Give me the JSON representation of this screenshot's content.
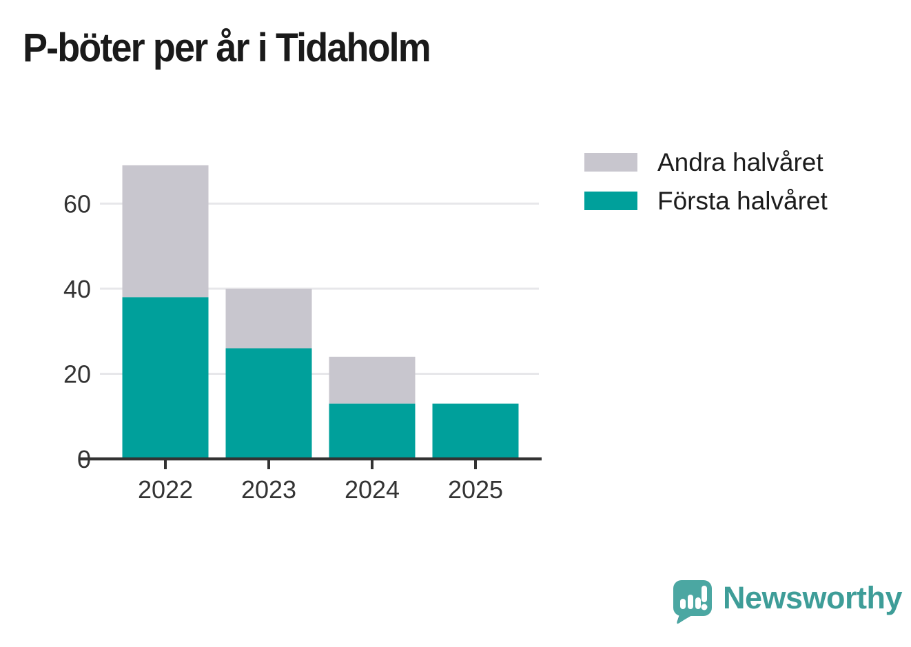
{
  "title": "P-böter per år i Tidaholm",
  "colors": {
    "first_half": "#00A09B",
    "second_half": "#C8C6CE",
    "axis": "#333333",
    "gridline": "#E7E7EA",
    "title_text": "#1A1A1A",
    "tick_text": "#333333",
    "brand_teal": "#3E9D98",
    "logo_bubble": "#4BA7A2",
    "logo_tail_shadow": "#3A7C8C"
  },
  "legend": {
    "items": [
      {
        "label": "Andra halvåret",
        "color": "#C8C6CE"
      },
      {
        "label": "Första halvåret",
        "color": "#00A09B"
      }
    ]
  },
  "chart_data": {
    "type": "bar",
    "stacked": true,
    "title": "P-böter per år i Tidaholm",
    "xlabel": "",
    "ylabel": "",
    "categories": [
      "2022",
      "2023",
      "2024",
      "2025"
    ],
    "series": [
      {
        "name": "Första halvåret",
        "color": "#00A09B",
        "values": [
          38,
          26,
          13,
          13
        ]
      },
      {
        "name": "Andra halvåret",
        "color": "#C8C6CE",
        "values": [
          31,
          14,
          11,
          0
        ]
      }
    ],
    "totals": [
      69,
      40,
      24,
      13
    ],
    "ylim": [
      0,
      70
    ],
    "yticks": [
      0,
      20,
      40,
      60
    ],
    "grid": true,
    "legend_position": "top-right"
  },
  "footer": {
    "brand": "Newsworthy",
    "logo_icon": "speech-bubble-bar-chart-exclamation"
  }
}
